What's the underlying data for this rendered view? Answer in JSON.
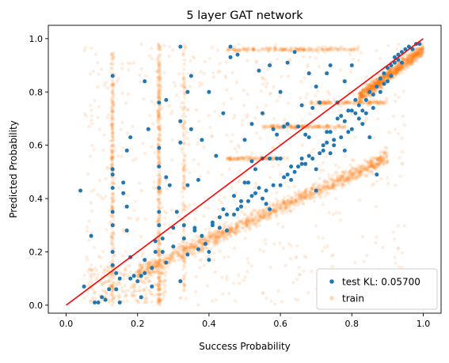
{
  "chart_data": {
    "type": "scatter",
    "title": "5 layer GAT network",
    "xlabel": "Success Probability",
    "ylabel": "Predicted Probability",
    "xlim": [
      -0.05,
      1.05
    ],
    "ylim": [
      -0.03,
      1.05
    ],
    "xticks": [
      "0.0",
      "0.2",
      "0.4",
      "0.6",
      "0.8",
      "1.0"
    ],
    "yticks": [
      "0.0",
      "0.2",
      "0.4",
      "0.6",
      "0.8",
      "1.0"
    ],
    "grid": false,
    "legend_position": "bottom-right",
    "reference_line": {
      "x": [
        0.0,
        1.0
      ],
      "y": [
        0.0,
        1.0
      ],
      "color": "#ff0000"
    },
    "series": [
      {
        "name": "test KL: 0.05700",
        "color": "#1f77b4",
        "points": [
          [
            0.04,
            0.43
          ],
          [
            0.05,
            0.07
          ],
          [
            0.07,
            0.26
          ],
          [
            0.08,
            0.01
          ],
          [
            0.09,
            0.01
          ],
          [
            0.1,
            0.03
          ],
          [
            0.11,
            0.02
          ],
          [
            0.12,
            0.06
          ],
          [
            0.13,
            0.86
          ],
          [
            0.13,
            0.51
          ],
          [
            0.13,
            0.49
          ],
          [
            0.13,
            0.44
          ],
          [
            0.13,
            0.35
          ],
          [
            0.13,
            0.3
          ],
          [
            0.13,
            0.2
          ],
          [
            0.13,
            0.15
          ],
          [
            0.14,
            0.12
          ],
          [
            0.14,
            0.06
          ],
          [
            0.15,
            0.01
          ],
          [
            0.15,
            0.1
          ],
          [
            0.16,
            0.42
          ],
          [
            0.16,
            0.46
          ],
          [
            0.17,
            0.37
          ],
          [
            0.17,
            0.28
          ],
          [
            0.18,
            0.1
          ],
          [
            0.18,
            0.63
          ],
          [
            0.18,
            0.18
          ],
          [
            0.19,
            0.11
          ],
          [
            0.2,
            0.09
          ],
          [
            0.21,
            0.11
          ],
          [
            0.21,
            0.03
          ],
          [
            0.22,
            0.12
          ],
          [
            0.22,
            0.17
          ],
          [
            0.23,
            0.66
          ],
          [
            0.24,
            0.14
          ],
          [
            0.25,
            0.24
          ],
          [
            0.25,
            0.2
          ],
          [
            0.26,
            0.76
          ],
          [
            0.26,
            0.59
          ],
          [
            0.26,
            0.52
          ],
          [
            0.26,
            0.44
          ],
          [
            0.26,
            0.35
          ],
          [
            0.26,
            0.3
          ],
          [
            0.27,
            0.25
          ],
          [
            0.27,
            0.2
          ],
          [
            0.28,
            0.48
          ],
          [
            0.28,
            0.16
          ],
          [
            0.29,
            0.45
          ],
          [
            0.3,
            0.22
          ],
          [
            0.3,
            0.29
          ],
          [
            0.31,
            0.35
          ],
          [
            0.32,
            0.69
          ],
          [
            0.32,
            0.97
          ],
          [
            0.32,
            0.61
          ],
          [
            0.33,
            0.3
          ],
          [
            0.33,
            0.25
          ],
          [
            0.34,
            0.19
          ],
          [
            0.34,
            0.45
          ],
          [
            0.35,
            0.86
          ],
          [
            0.35,
            0.66
          ],
          [
            0.36,
            0.29
          ],
          [
            0.36,
            0.28
          ],
          [
            0.37,
            0.21
          ],
          [
            0.37,
            0.47
          ],
          [
            0.38,
            0.62
          ],
          [
            0.38,
            0.26
          ],
          [
            0.39,
            0.23
          ],
          [
            0.4,
            0.2
          ],
          [
            0.4,
            0.17
          ],
          [
            0.41,
            0.3
          ],
          [
            0.41,
            0.31
          ],
          [
            0.42,
            0.56
          ],
          [
            0.43,
            0.29
          ],
          [
            0.43,
            0.33
          ],
          [
            0.44,
            0.36
          ],
          [
            0.45,
            0.34
          ],
          [
            0.45,
            0.28
          ],
          [
            0.46,
            0.93
          ],
          [
            0.46,
            0.97
          ],
          [
            0.47,
            0.34
          ],
          [
            0.47,
            0.41
          ],
          [
            0.48,
            0.36
          ],
          [
            0.48,
            0.94
          ],
          [
            0.49,
            0.37
          ],
          [
            0.49,
            0.39
          ],
          [
            0.5,
            0.62
          ],
          [
            0.5,
            0.46
          ],
          [
            0.51,
            0.39
          ],
          [
            0.51,
            0.46
          ],
          [
            0.52,
            0.41
          ],
          [
            0.52,
            0.54
          ],
          [
            0.53,
            0.51
          ],
          [
            0.53,
            0.42
          ],
          [
            0.54,
            0.44
          ],
          [
            0.54,
            0.88
          ],
          [
            0.55,
            0.55
          ],
          [
            0.55,
            0.4
          ],
          [
            0.56,
            0.38
          ],
          [
            0.56,
            0.43
          ],
          [
            0.57,
            0.36
          ],
          [
            0.57,
            0.55
          ],
          [
            0.58,
            0.45
          ],
          [
            0.58,
            0.66
          ],
          [
            0.59,
            0.55
          ],
          [
            0.59,
            0.64
          ],
          [
            0.6,
            0.45
          ],
          [
            0.6,
            0.55
          ],
          [
            0.61,
            0.48
          ],
          [
            0.61,
            0.67
          ],
          [
            0.62,
            0.49
          ],
          [
            0.62,
            0.68
          ],
          [
            0.63,
            0.47
          ],
          [
            0.63,
            0.52
          ],
          [
            0.64,
            0.95
          ],
          [
            0.64,
            0.5
          ],
          [
            0.65,
            0.52
          ],
          [
            0.65,
            0.67
          ],
          [
            0.66,
            0.55
          ],
          [
            0.66,
            0.53
          ],
          [
            0.67,
            0.53
          ],
          [
            0.67,
            0.64
          ],
          [
            0.68,
            0.63
          ],
          [
            0.68,
            0.56
          ],
          [
            0.69,
            0.74
          ],
          [
            0.69,
            0.55
          ],
          [
            0.7,
            0.51
          ],
          [
            0.7,
            0.43
          ],
          [
            0.71,
            0.57
          ],
          [
            0.71,
            0.76
          ],
          [
            0.72,
            0.6
          ],
          [
            0.72,
            0.58
          ],
          [
            0.73,
            0.61
          ],
          [
            0.73,
            0.65
          ],
          [
            0.74,
            0.57
          ],
          [
            0.74,
            0.65
          ],
          [
            0.75,
            0.62
          ],
          [
            0.75,
            0.6
          ],
          [
            0.76,
            0.76
          ],
          [
            0.76,
            0.7
          ],
          [
            0.77,
            0.63
          ],
          [
            0.77,
            0.71
          ],
          [
            0.78,
            0.58
          ],
          [
            0.78,
            0.69
          ],
          [
            0.79,
            0.73
          ],
          [
            0.79,
            0.65
          ],
          [
            0.8,
            0.66
          ],
          [
            0.8,
            0.73
          ],
          [
            0.81,
            0.72
          ],
          [
            0.81,
            0.77
          ],
          [
            0.82,
            0.7
          ],
          [
            0.82,
            0.75
          ],
          [
            0.83,
            0.68
          ],
          [
            0.83,
            0.73
          ],
          [
            0.84,
            0.72
          ],
          [
            0.84,
            0.77
          ],
          [
            0.85,
            0.8
          ],
          [
            0.85,
            0.63
          ],
          [
            0.86,
            0.74
          ],
          [
            0.86,
            0.79
          ],
          [
            0.87,
            0.82
          ],
          [
            0.87,
            0.49
          ],
          [
            0.88,
            0.8
          ],
          [
            0.88,
            0.85
          ],
          [
            0.89,
            0.83
          ],
          [
            0.89,
            0.87
          ],
          [
            0.9,
            0.84
          ],
          [
            0.9,
            0.89
          ],
          [
            0.91,
            0.9
          ],
          [
            0.91,
            0.86
          ],
          [
            0.92,
            0.91
          ],
          [
            0.92,
            0.93
          ],
          [
            0.93,
            0.92
          ],
          [
            0.93,
            0.94
          ],
          [
            0.94,
            0.95
          ],
          [
            0.94,
            0.91
          ],
          [
            0.95,
            0.96
          ],
          [
            0.96,
            0.97
          ],
          [
            0.97,
            0.96
          ],
          [
            0.98,
            0.98
          ],
          [
            0.99,
            0.98
          ],
          [
            0.32,
            0.09
          ],
          [
            0.4,
            0.8
          ],
          [
            0.44,
            0.72
          ],
          [
            0.52,
            0.68
          ],
          [
            0.55,
            0.72
          ],
          [
            0.6,
            0.8
          ],
          [
            0.66,
            0.75
          ],
          [
            0.7,
            0.82
          ],
          [
            0.73,
            0.87
          ],
          [
            0.78,
            0.84
          ],
          [
            0.22,
            0.84
          ],
          [
            0.17,
            0.58
          ],
          [
            0.24,
            0.07
          ],
          [
            0.28,
            0.77
          ],
          [
            0.34,
            0.8
          ],
          [
            0.57,
            0.9
          ],
          [
            0.62,
            0.91
          ],
          [
            0.68,
            0.87
          ],
          [
            0.74,
            0.9
          ],
          [
            0.8,
            0.9
          ]
        ]
      },
      {
        "name": "train",
        "color": "#ff7f0e",
        "alpha": 0.15
      }
    ]
  }
}
